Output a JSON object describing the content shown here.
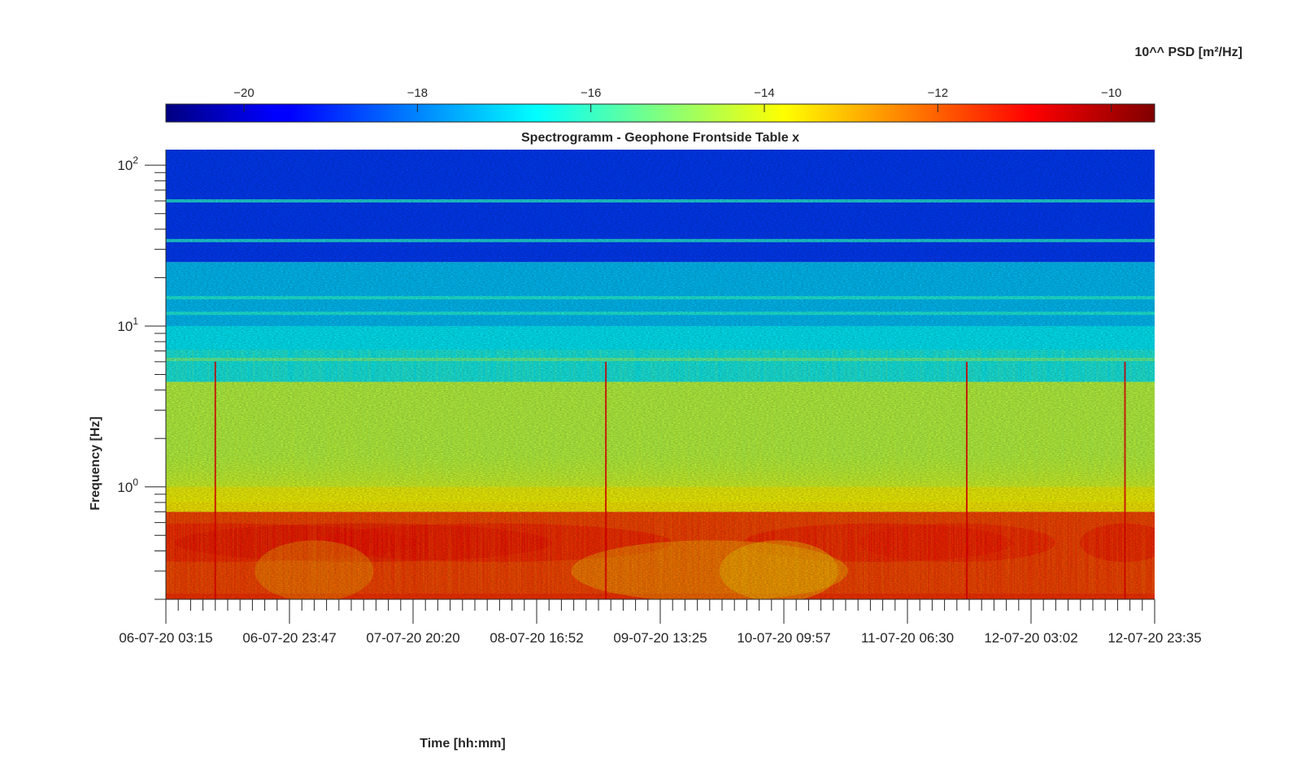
{
  "chart_data": {
    "type": "heatmap",
    "title": "Spectrogramm - Geophone Frontside Table x",
    "xlabel": "Time [hh:mm]",
    "ylabel": "Frequency [Hz]",
    "colorbar": {
      "label": "10^^ PSD [m²/Hz]",
      "ticks": [
        -20,
        -18,
        -16,
        -14,
        -12,
        -10
      ],
      "range": [
        -20.9,
        -9.5
      ],
      "colormap": "jet",
      "position": "top"
    },
    "x_ticks": [
      "06-07-20 03:15",
      "06-07-20 23:47",
      "07-07-20 20:20",
      "08-07-20 16:52",
      "09-07-20 13:25",
      "10-07-20 09:57",
      "11-07-20 06:30",
      "12-07-20 03:02",
      "12-07-20 23:35"
    ],
    "x_range": [
      "06-07-20 03:15",
      "12-07-20 23:35"
    ],
    "y_scale": "log",
    "y_ticks": [
      {
        "base": "10",
        "exp": "0",
        "value": 1
      },
      {
        "base": "10",
        "exp": "1",
        "value": 10
      },
      {
        "base": "10",
        "exp": "2",
        "value": 100
      }
    ],
    "y_range": [
      0.2,
      125
    ],
    "bands": [
      {
        "f_min": 0.2,
        "f_max": 0.7,
        "level": -11.5
      },
      {
        "f_min": 0.7,
        "f_max": 1.0,
        "level": -13.6
      },
      {
        "f_min": 1.0,
        "f_max": 4.5,
        "level": -14.6
      },
      {
        "f_min": 4.5,
        "f_max": 10,
        "level": -16.8
      },
      {
        "f_min": 10,
        "f_max": 25,
        "level": -17.3
      },
      {
        "f_min": 25,
        "f_max": 125,
        "level": -18.8
      }
    ],
    "lines_hz": [
      6.2,
      12,
      15,
      34,
      60
    ],
    "spikes_time_fraction": [
      0.05,
      0.445,
      0.81,
      0.97
    ]
  }
}
